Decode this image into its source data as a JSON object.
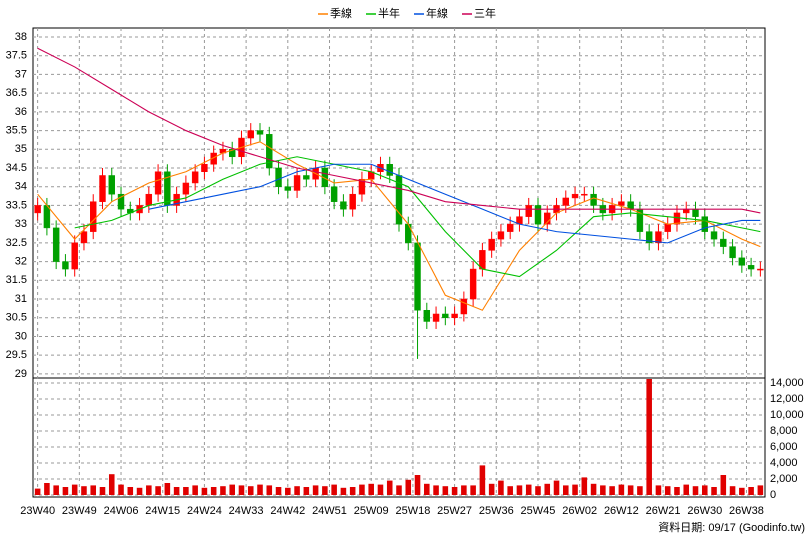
{
  "chart_data": {
    "type": "candlestick",
    "annotation": "資料日期: 09/17 (Goodinfo.tw)",
    "grid": true,
    "legend": "top",
    "xlim": [
      -1,
      157
    ],
    "xticks": [
      {
        "value": 0,
        "label": "23W40"
      },
      {
        "value": 9,
        "label": "23W49"
      },
      {
        "value": 18,
        "label": "24W06"
      },
      {
        "value": 27,
        "label": "24W15"
      },
      {
        "value": 36,
        "label": "24W24"
      },
      {
        "value": 45,
        "label": "24W33"
      },
      {
        "value": 54,
        "label": "24W42"
      },
      {
        "value": 63,
        "label": "24W51"
      },
      {
        "value": 72,
        "label": "25W09"
      },
      {
        "value": 81,
        "label": "25W18"
      },
      {
        "value": 90,
        "label": "25W27"
      },
      {
        "value": 99,
        "label": "25W36"
      },
      {
        "value": 108,
        "label": "25W45"
      },
      {
        "value": 117,
        "label": "26W02"
      },
      {
        "value": 126,
        "label": "26W12"
      },
      {
        "value": 135,
        "label": "26W21"
      },
      {
        "value": 144,
        "label": "26W30"
      },
      {
        "value": 153,
        "label": "26W38"
      }
    ],
    "ylim": [
      28.89,
      38.24
    ],
    "yticks": [
      29,
      29.5,
      30,
      30.5,
      31,
      31.5,
      32,
      32.5,
      33,
      33.5,
      34,
      34.5,
      35,
      35.5,
      36,
      36.5,
      37,
      37.5,
      38
    ],
    "candles": {
      "up_color": "#ff0000",
      "down_color": "#00a000",
      "x": [
        0,
        2,
        4,
        6,
        8,
        10,
        12,
        14,
        16,
        18,
        20,
        22,
        24,
        26,
        28,
        30,
        32,
        34,
        36,
        38,
        40,
        42,
        44,
        46,
        48,
        50,
        52,
        54,
        56,
        58,
        60,
        62,
        64,
        66,
        68,
        70,
        72,
        74,
        76,
        78,
        80,
        82,
        84,
        86,
        88,
        90,
        92,
        94,
        96,
        98,
        100,
        102,
        104,
        106,
        108,
        110,
        112,
        114,
        116,
        118,
        120,
        122,
        124,
        126,
        128,
        130,
        132,
        134,
        136,
        138,
        140,
        142,
        144,
        146,
        148,
        150,
        152,
        154,
        156
      ],
      "open": [
        33.3,
        33.5,
        32.9,
        32.0,
        31.8,
        32.5,
        32.8,
        33.6,
        34.3,
        33.8,
        33.4,
        33.3,
        33.5,
        33.8,
        34.4,
        33.5,
        33.8,
        34.1,
        34.4,
        34.6,
        34.9,
        35.0,
        34.8,
        35.3,
        35.5,
        35.4,
        34.5,
        34.0,
        33.9,
        34.3,
        34.2,
        34.5,
        34.0,
        33.6,
        33.4,
        33.8,
        34.2,
        34.4,
        34.6,
        34.3,
        33.0,
        32.5,
        30.7,
        30.4,
        30.6,
        30.5,
        30.6,
        31.0,
        31.8,
        32.3,
        32.6,
        32.8,
        33.0,
        33.2,
        33.5,
        33.0,
        33.3,
        33.5,
        33.7,
        33.8,
        33.8,
        33.5,
        33.3,
        33.5,
        33.6,
        33.4,
        32.8,
        32.5,
        32.8,
        33.0,
        33.3,
        33.4,
        33.2,
        32.8,
        32.6,
        32.4,
        32.1,
        31.9,
        31.8
      ],
      "high": [
        33.7,
        33.7,
        33.1,
        32.2,
        32.7,
        33.0,
        33.8,
        34.5,
        34.5,
        34.0,
        33.6,
        33.7,
        34.0,
        34.6,
        34.6,
        34.0,
        34.3,
        34.6,
        34.8,
        35.1,
        35.2,
        35.2,
        35.5,
        35.7,
        35.7,
        35.6,
        34.7,
        34.2,
        34.5,
        34.5,
        34.7,
        34.7,
        34.2,
        33.8,
        34.0,
        34.4,
        34.6,
        34.8,
        34.8,
        34.5,
        33.2,
        32.7,
        30.9,
        30.8,
        30.8,
        30.8,
        31.2,
        32.0,
        32.5,
        32.8,
        33.0,
        33.2,
        33.4,
        33.7,
        33.7,
        33.5,
        33.7,
        33.9,
        34.0,
        34.0,
        34.0,
        33.7,
        33.7,
        33.8,
        33.8,
        33.6,
        33.0,
        33.0,
        33.2,
        33.5,
        33.6,
        33.6,
        33.4,
        33.0,
        32.8,
        32.6,
        32.3,
        32.1,
        32.0
      ],
      "low": [
        33.1,
        32.7,
        31.8,
        31.6,
        31.6,
        32.3,
        32.6,
        33.4,
        33.6,
        33.2,
        33.1,
        33.1,
        33.3,
        33.6,
        33.3,
        33.3,
        33.6,
        33.9,
        34.2,
        34.4,
        34.7,
        34.6,
        34.6,
        35.1,
        35.2,
        34.3,
        33.8,
        33.7,
        33.7,
        34.0,
        34.0,
        33.8,
        33.4,
        33.2,
        33.2,
        33.6,
        34.0,
        34.2,
        34.1,
        32.8,
        32.3,
        29.4,
        30.2,
        30.2,
        30.3,
        30.3,
        30.4,
        30.8,
        31.6,
        32.1,
        32.4,
        32.6,
        32.8,
        33.0,
        32.8,
        32.8,
        33.1,
        33.3,
        33.5,
        33.6,
        33.3,
        33.1,
        33.1,
        33.3,
        33.2,
        32.6,
        32.3,
        32.3,
        32.6,
        32.8,
        33.1,
        33.0,
        32.6,
        32.4,
        32.2,
        31.9,
        31.7,
        31.6,
        31.6
      ],
      "close": [
        33.5,
        32.9,
        32.0,
        31.8,
        32.5,
        32.8,
        33.6,
        34.3,
        33.8,
        33.4,
        33.3,
        33.5,
        33.8,
        34.4,
        33.5,
        33.8,
        34.1,
        34.4,
        34.6,
        34.9,
        35.0,
        34.8,
        35.3,
        35.5,
        35.4,
        34.5,
        34.0,
        33.9,
        34.3,
        34.2,
        34.5,
        34.0,
        33.6,
        33.4,
        33.8,
        34.2,
        34.4,
        34.6,
        34.3,
        33.0,
        32.5,
        30.7,
        30.4,
        30.6,
        30.5,
        30.6,
        31.0,
        31.8,
        32.3,
        32.6,
        32.8,
        33.0,
        33.2,
        33.5,
        33.0,
        33.3,
        33.5,
        33.7,
        33.8,
        33.8,
        33.5,
        33.3,
        33.5,
        33.6,
        33.4,
        32.8,
        32.5,
        32.8,
        33.0,
        33.3,
        33.4,
        33.2,
        32.8,
        32.6,
        32.4,
        32.1,
        31.9,
        31.8,
        31.8
      ]
    },
    "series": [
      {
        "name": "季線",
        "color": "#ff8000",
        "x": [
          0,
          8,
          16,
          24,
          32,
          40,
          48,
          56,
          64,
          72,
          80,
          88,
          96,
          104,
          112,
          120,
          128,
          136,
          144,
          152,
          156
        ],
        "values": [
          33.8,
          32.6,
          33.6,
          34.1,
          34.4,
          34.9,
          35.2,
          34.6,
          34.1,
          34.2,
          33.0,
          31.1,
          30.7,
          32.3,
          33.3,
          33.7,
          33.4,
          33.0,
          33.1,
          32.6,
          32.4
        ]
      },
      {
        "name": "半年",
        "color": "#00c000",
        "x": [
          8,
          16,
          24,
          32,
          40,
          48,
          56,
          64,
          72,
          80,
          88,
          96,
          104,
          112,
          120,
          128,
          136,
          144,
          152,
          156
        ],
        "values": [
          32.9,
          33.1,
          33.5,
          33.7,
          34.2,
          34.6,
          34.8,
          34.6,
          34.4,
          34.0,
          32.8,
          31.8,
          31.6,
          32.3,
          33.2,
          33.3,
          33.2,
          33.1,
          32.9,
          32.8
        ]
      },
      {
        "name": "年線",
        "color": "#0050e0",
        "x": [
          24,
          32,
          40,
          48,
          56,
          64,
          72,
          80,
          88,
          96,
          104,
          112,
          120,
          128,
          136,
          144,
          152,
          156
        ],
        "values": [
          33.4,
          33.6,
          33.8,
          34.0,
          34.4,
          34.6,
          34.6,
          34.2,
          33.8,
          33.4,
          33.0,
          32.8,
          32.7,
          32.6,
          32.5,
          32.9,
          33.1,
          33.1
        ]
      },
      {
        "name": "三年",
        "color": "#cc0055",
        "x": [
          0,
          8,
          16,
          24,
          32,
          40,
          48,
          56,
          64,
          72,
          80,
          88,
          96,
          104,
          112,
          120,
          128,
          136,
          144,
          152,
          156
        ],
        "values": [
          37.7,
          37.2,
          36.6,
          36.0,
          35.5,
          35.1,
          34.8,
          34.5,
          34.3,
          34.1,
          33.9,
          33.6,
          33.5,
          33.4,
          33.4,
          33.4,
          33.4,
          33.4,
          33.4,
          33.4,
          33.3
        ]
      }
    ],
    "volume": {
      "color": "#e00000",
      "ylim": [
        0,
        14625
      ],
      "yticks": [
        0,
        {
          "value": 2000,
          "label": "2,000"
        },
        {
          "value": 4000,
          "label": "4,000"
        },
        {
          "value": 6000,
          "label": "6,000"
        },
        {
          "value": 8000,
          "label": "8,000"
        },
        {
          "value": 10000,
          "label": "10,000"
        },
        {
          "value": 12000,
          "label": "12,000"
        },
        {
          "value": 14000,
          "label": "14,000"
        }
      ],
      "values": [
        800,
        1500,
        1200,
        1000,
        1300,
        1100,
        1200,
        1000,
        2600,
        1300,
        1000,
        900,
        1200,
        1100,
        1500,
        1000,
        1000,
        1200,
        900,
        1000,
        1100,
        1300,
        1200,
        1100,
        1300,
        1200,
        1000,
        900,
        1100,
        1000,
        1200,
        1100,
        1300,
        900,
        1000,
        1300,
        1400,
        1300,
        1800,
        1200,
        1900,
        2500,
        1400,
        1200,
        1100,
        1000,
        1200,
        1200,
        3700,
        1400,
        1800,
        1100,
        1200,
        1300,
        1100,
        1400,
        1800,
        1200,
        1300,
        2200,
        1400,
        1200,
        1100,
        1300,
        1200,
        1100,
        14500,
        1200,
        1100,
        1000,
        1300,
        1100,
        1200,
        1000,
        2500,
        1100,
        900,
        1000,
        1200
      ]
    }
  }
}
